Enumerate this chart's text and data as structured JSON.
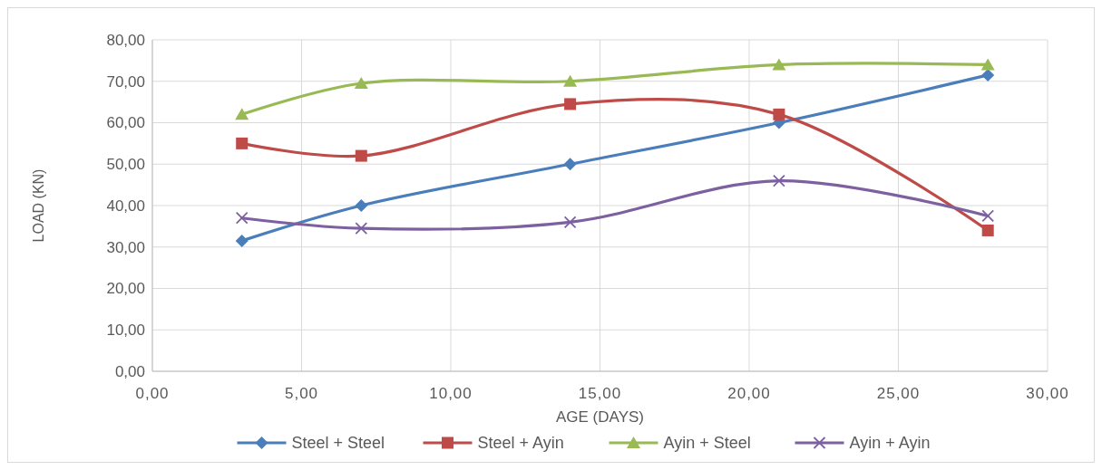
{
  "chart_data": {
    "type": "line",
    "xlabel": "AGE (DAYS)",
    "ylabel": "LOAD (KN)",
    "x": [
      3,
      7,
      14,
      21,
      28
    ],
    "series": [
      {
        "name": "Steel + Steel",
        "color": "#4a7ebb",
        "marker": "diamond",
        "values": [
          31.5,
          40,
          50,
          60,
          71.5
        ]
      },
      {
        "name": "Steel + Ayin",
        "color": "#be4b48",
        "marker": "square",
        "values": [
          55,
          52,
          64.5,
          62,
          34
        ]
      },
      {
        "name": "Ayin + Steel",
        "color": "#98b954",
        "marker": "triangle",
        "values": [
          62,
          69.5,
          70,
          74,
          74
        ]
      },
      {
        "name": "Ayin + Ayin",
        "color": "#7d60a0",
        "marker": "cross",
        "values": [
          37,
          34.5,
          36,
          46,
          37.5
        ]
      }
    ],
    "xlim": [
      0,
      30
    ],
    "xticks": [
      {
        "value": 0,
        "label": "0,00"
      },
      {
        "value": 5,
        "label": "5,00"
      },
      {
        "value": 10,
        "label": "10,00"
      },
      {
        "value": 15,
        "label": "15,00"
      },
      {
        "value": 20,
        "label": "20,00"
      },
      {
        "value": 25,
        "label": "25,00"
      },
      {
        "value": 30,
        "label": "30,00"
      }
    ],
    "ylim": [
      0,
      80
    ],
    "yticks": [
      {
        "value": 0,
        "label": "0,00"
      },
      {
        "value": 10,
        "label": "10,00"
      },
      {
        "value": 20,
        "label": "20,00"
      },
      {
        "value": 30,
        "label": "30,00"
      },
      {
        "value": 40,
        "label": "40,00"
      },
      {
        "value": 50,
        "label": "50,00"
      },
      {
        "value": 60,
        "label": "60,00"
      },
      {
        "value": 70,
        "label": "70,00"
      },
      {
        "value": 80,
        "label": "80,00"
      }
    ],
    "grid": true,
    "legend": "bottom",
    "line_style": "solid"
  }
}
